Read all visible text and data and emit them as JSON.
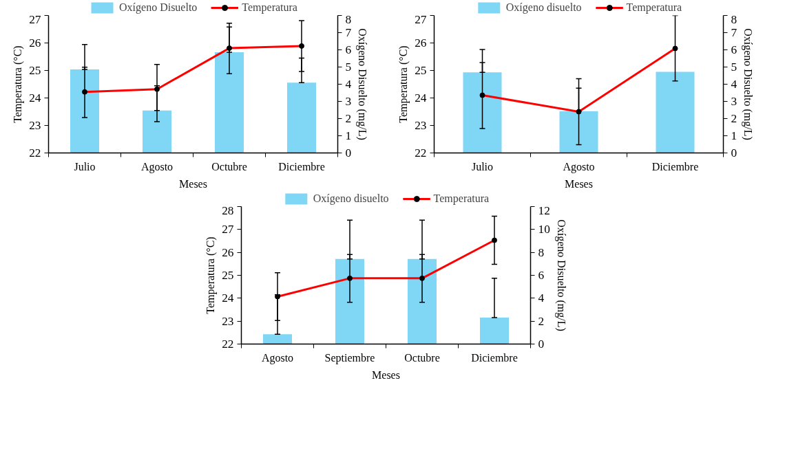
{
  "chart_data": [
    {
      "type": "bar",
      "categories": [
        "Julio",
        "Agosto",
        "Octubre",
        "Diciembre"
      ],
      "xlabel": "Meses",
      "ylabel": "Temperatura (°C)",
      "y2label": "Oxígeno Disuelto (mg/L)",
      "ylim": [
        22,
        27
      ],
      "yticks": [
        22,
        23,
        24,
        25,
        26,
        27
      ],
      "y2lim": [
        0,
        8
      ],
      "y2ticks": [
        0,
        1,
        2,
        3,
        4,
        5,
        6,
        7,
        8
      ],
      "legend": "top",
      "series": [
        {
          "name": "Oxígeno Disuelto",
          "axis": "y2",
          "color": "#7fd6f5",
          "values": [
            4.86,
            2.47,
            5.86,
            4.09
          ],
          "errors": [
            [
              4.86,
              6.31
            ],
            [
              2.47,
              3.91
            ],
            [
              5.86,
              7.33
            ],
            [
              4.09,
              5.52
            ]
          ]
        },
        {
          "name": "Temperatura",
          "type": "line",
          "color": "#ff0000",
          "marker": "circle",
          "values": [
            24.22,
            24.32,
            25.81,
            25.89
          ],
          "errors": [
            [
              23.29,
              25.12
            ],
            [
              23.14,
              25.22
            ],
            [
              24.88,
              26.72
            ],
            [
              24.96,
              26.81
            ]
          ]
        }
      ]
    },
    {
      "type": "bar",
      "categories": [
        "Julio",
        "Agosto",
        "Diciembre"
      ],
      "xlabel": "Meses",
      "ylabel": "Temperatura (°C)",
      "y2label": "Oxígeno Disuelto (mg/L)",
      "ylim": [
        22,
        27
      ],
      "yticks": [
        22,
        23,
        24,
        25,
        26,
        27
      ],
      "y2lim": [
        0,
        8
      ],
      "y2ticks": [
        0,
        1,
        2,
        3,
        4,
        5,
        6,
        7,
        8
      ],
      "legend": "top",
      "series": [
        {
          "name": "Oxígeno disuelto",
          "axis": "y2",
          "color": "#7fd6f5",
          "values": [
            4.69,
            2.43,
            4.72
          ],
          "errors": [
            [
              4.69,
              6.02
            ],
            [
              2.43,
              3.77
            ],
            null
          ]
        },
        {
          "name": "Temperatura",
          "type": "line",
          "color": "#ff0000",
          "marker": "circle",
          "values": [
            24.1,
            23.5,
            25.8
          ],
          "errors": [
            [
              22.89,
              25.29
            ],
            [
              22.3,
              24.7
            ],
            [
              24.62,
              27.0
            ]
          ]
        }
      ]
    },
    {
      "type": "bar",
      "categories": [
        "Agosto",
        "Septiembre",
        "Octubre",
        "Diciembre"
      ],
      "xlabel": "Meses",
      "ylabel": "Temperatura (°C)",
      "y2label": "Oxígeno Disuelto (mg/L)",
      "ylim": [
        22,
        28
      ],
      "yticks": [
        22,
        23,
        24,
        25,
        26,
        27,
        28
      ],
      "y2lim": [
        0,
        12
      ],
      "y2ticks": [
        0,
        2,
        4,
        6,
        8,
        10,
        12
      ],
      "legend": "top",
      "series": [
        {
          "name": "Oxígeno disuelto",
          "axis": "y2",
          "color": "#7fd6f5",
          "values": [
            0.86,
            7.42,
            7.42,
            2.31
          ],
          "errors": [
            [
              0.86,
              4.3
            ],
            [
              7.42,
              10.82
            ],
            [
              7.42,
              10.82
            ],
            [
              2.31,
              5.75
            ]
          ]
        },
        {
          "name": "Temperatura",
          "type": "line",
          "color": "#ff0000",
          "marker": "circle",
          "values": [
            24.07,
            24.87,
            24.87,
            26.53
          ],
          "errors": [
            [
              23.03,
              25.11
            ],
            [
              23.82,
              25.91
            ],
            [
              23.82,
              25.91
            ],
            [
              25.48,
              27.58
            ]
          ]
        }
      ]
    }
  ]
}
